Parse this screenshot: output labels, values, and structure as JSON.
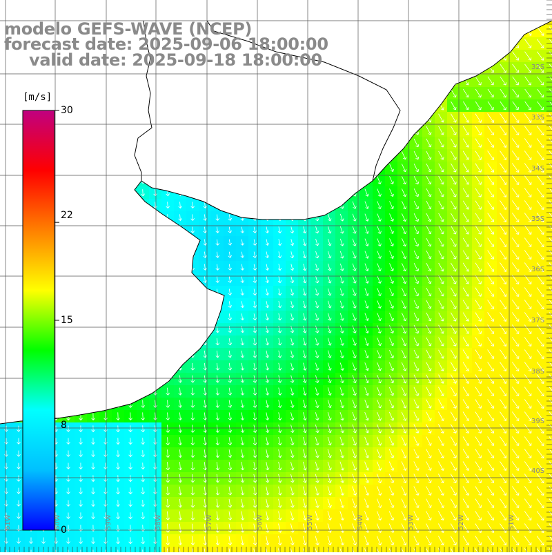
{
  "title": {
    "model": "modelo GEFS-WAVE (NCEP)",
    "forecast": "forecast date: 2025-09-06 18:00:00",
    "valid": "valid date: 2025-09-18 18:00:00"
  },
  "colorbar": {
    "unit": "[m/s]",
    "ticks": [
      "30",
      "22",
      "15",
      "8",
      "0"
    ],
    "tick_values": [
      30,
      22,
      15,
      8,
      0
    ],
    "min": 0,
    "max": 30,
    "colors": [
      "#0000ff",
      "#00c0ff",
      "#00ffff",
      "#00ff00",
      "#ffff00",
      "#ff8000",
      "#ff0000",
      "#c00080"
    ]
  },
  "axis": {
    "lon_labels": [
      "61W",
      "60W",
      "59W",
      "58W",
      "57W",
      "56W",
      "55W",
      "54W",
      "53W",
      "52W",
      "51W"
    ],
    "lat_labels": [
      "32S",
      "33S",
      "34S",
      "35S",
      "36S",
      "37S",
      "38S",
      "39S",
      "40S",
      "41S"
    ]
  },
  "colors": {
    "land": "#ffffff",
    "coastline": "#000000",
    "grid": "#555555",
    "title": "#8a8a8a",
    "vector": "#ffffff"
  }
}
